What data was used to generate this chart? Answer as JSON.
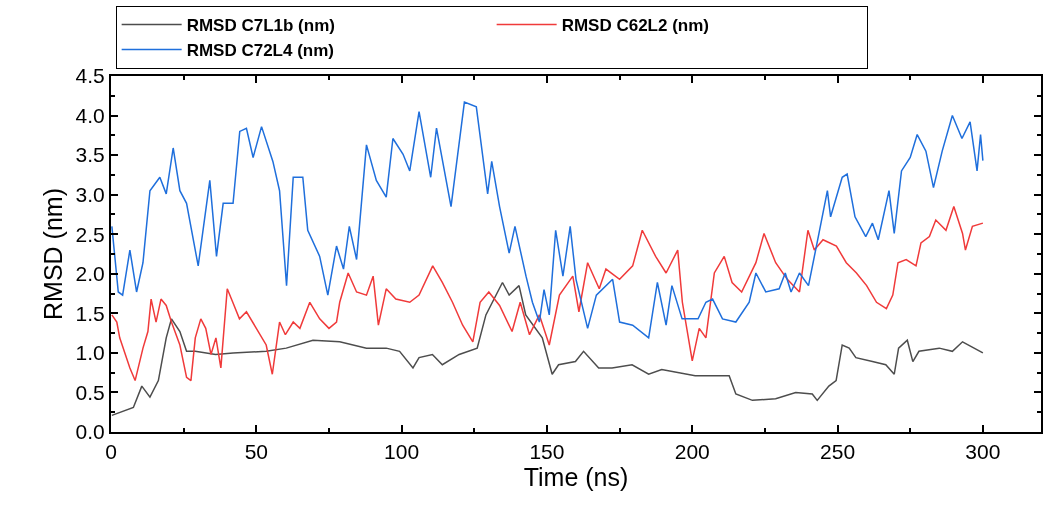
{
  "chart_data": {
    "type": "line",
    "xlabel": "Time (ns)",
    "ylabel": "RMSD (nm)",
    "xlim": [
      0,
      320
    ],
    "ylim": [
      0,
      4.5
    ],
    "xticks": [
      0,
      50,
      100,
      150,
      200,
      250,
      300
    ],
    "yticks": [
      {
        "value": 0,
        "label": "0.0"
      },
      0.5,
      {
        "value": 1,
        "label": "1.0"
      },
      1.5,
      {
        "value": 2,
        "label": "2.0"
      },
      2.5,
      {
        "value": 3,
        "label": "3.0"
      },
      3.5,
      {
        "value": 4,
        "label": "4.0"
      },
      4.5
    ],
    "legend": "top",
    "marker": "none",
    "line_style": "solid",
    "series": [
      {
        "name": "RMSD C7L1b (nm)",
        "color": "#4d4d4d",
        "x": [
          0.3,
          7.7,
          10.6,
          13.4,
          16.3,
          19,
          20.8,
          23.7,
          26,
          29,
          36,
          42,
          53.4,
          60.3,
          69.5,
          78.7,
          87.9,
          94.7,
          99.3,
          103.9,
          106,
          110.6,
          114,
          119.8,
          126,
          129,
          134.7,
          137,
          140.4,
          142.7,
          148.4,
          151.8,
          154,
          159.8,
          162.6,
          167.8,
          172.4,
          179.3,
          185,
          189.5,
          201,
          210,
          212.7,
          215,
          220.7,
          228.7,
          235.6,
          241.3,
          243,
          247,
          249.5,
          251.6,
          254,
          256.3,
          262,
          266.6,
          269.5,
          271,
          274,
          275.9,
          278,
          285,
          289.5,
          293,
          300
        ],
        "values": [
          0.21,
          0.31,
          0.58,
          0.44,
          0.65,
          1.19,
          1.43,
          1.27,
          1.02,
          1.02,
          0.98,
          1.0,
          1.02,
          1.06,
          1.16,
          1.14,
          1.06,
          1.06,
          1.02,
          0.81,
          0.94,
          0.98,
          0.85,
          0.98,
          1.06,
          1.48,
          1.89,
          1.73,
          1.85,
          1.48,
          1.19,
          0.73,
          0.85,
          0.89,
          1.02,
          0.81,
          0.81,
          0.85,
          0.73,
          0.79,
          0.71,
          0.71,
          0.71,
          0.48,
          0.4,
          0.42,
          0.5,
          0.48,
          0.4,
          0.58,
          0.65,
          1.1,
          1.06,
          0.94,
          0.89,
          0.85,
          0.73,
          1.06,
          1.16,
          0.89,
          1.02,
          1.06,
          1.02,
          1.14,
          1.0
        ]
      },
      {
        "name": "RMSD C62L2 (nm)",
        "color": "#f03a3a",
        "x": [
          0.3,
          2,
          3,
          6.5,
          8.3,
          11,
          12.7,
          13.8,
          15.5,
          17.2,
          19,
          20.8,
          23.7,
          26,
          27.5,
          29,
          30.9,
          32.6,
          34.4,
          36.1,
          37.8,
          40,
          41.9,
          44.2,
          46.6,
          50,
          53.4,
          55.5,
          58,
          60,
          62.7,
          65,
          68.4,
          71.8,
          75,
          77.6,
          78.7,
          81.6,
          84.5,
          87.9,
          90.2,
          92,
          94.7,
          98,
          102.8,
          106,
          110.7,
          114,
          117.5,
          121,
          124.5,
          127,
          130,
          133.7,
          138,
          140.8,
          144,
          147.4,
          150.8,
          154.3,
          158.9,
          161,
          164,
          168,
          170.3,
          175,
          179.5,
          182.8,
          187.4,
          191,
          195,
          196.6,
          200,
          202.4,
          204.7,
          207.6,
          211,
          213.7,
          217,
          221.9,
          224.7,
          228.7,
          232.7,
          236.9,
          239.8,
          242,
          245,
          249.6,
          253,
          256.5,
          260,
          263.4,
          266.8,
          269,
          270.8,
          273.6,
          277,
          278.7,
          281.6,
          283.8,
          287.3,
          290,
          293,
          294,
          296.4,
          300
        ],
        "values": [
          1.48,
          1.39,
          1.19,
          0.81,
          0.65,
          1.06,
          1.27,
          1.68,
          1.39,
          1.68,
          1.6,
          1.39,
          1.1,
          0.69,
          0.65,
          1.19,
          1.43,
          1.31,
          0.98,
          1.19,
          0.81,
          1.81,
          1.64,
          1.43,
          1.52,
          1.31,
          1.1,
          0.73,
          1.39,
          1.23,
          1.39,
          1.31,
          1.64,
          1.43,
          1.31,
          1.39,
          1.64,
          2.01,
          1.77,
          1.73,
          1.97,
          1.35,
          1.81,
          1.68,
          1.64,
          1.73,
          2.1,
          1.89,
          1.64,
          1.35,
          1.14,
          1.64,
          1.77,
          1.6,
          1.27,
          1.64,
          1.23,
          1.48,
          1.1,
          1.73,
          1.97,
          1.52,
          2.14,
          1.81,
          2.06,
          1.93,
          2.1,
          2.55,
          2.22,
          2.01,
          2.3,
          1.64,
          0.9,
          1.31,
          1.19,
          2.01,
          2.22,
          1.89,
          1.77,
          2.14,
          2.51,
          2.14,
          1.93,
          1.77,
          2.55,
          2.3,
          2.43,
          2.35,
          2.14,
          2.01,
          1.85,
          1.64,
          1.56,
          1.73,
          2.14,
          2.18,
          2.1,
          2.39,
          2.47,
          2.68,
          2.55,
          2.85,
          2.51,
          2.3,
          2.6,
          2.64
        ]
      },
      {
        "name": "RMSD C72L4 (nm)",
        "color": "#1f6fdc",
        "x": [
          0.3,
          2.5,
          4,
          6.5,
          8.8,
          11,
          13.4,
          16.8,
          19,
          21.4,
          23.7,
          26,
          30,
          34,
          36.3,
          38.6,
          42,
          44.3,
          46.6,
          48.9,
          51.8,
          55.7,
          58,
          60.4,
          62.7,
          66,
          67.7,
          71.8,
          74.6,
          77.6,
          80,
          82,
          84.5,
          87.9,
          91.3,
          94.7,
          97,
          100.5,
          102.8,
          106,
          110,
          112,
          117,
          121.6,
          125.7,
          129.6,
          131,
          133.7,
          137,
          139,
          142.8,
          145,
          147.4,
          149,
          150.8,
          153,
          155.5,
          158,
          160,
          164,
          167,
          172.6,
          175,
          179.5,
          185,
          188,
          191,
          193,
          196.5,
          202,
          204.7,
          207,
          210.4,
          215,
          219.6,
          221.9,
          225.3,
          229.9,
          232,
          234,
          236.9,
          240,
          243.6,
          246.5,
          247.6,
          251.6,
          253.3,
          256,
          259.7,
          262,
          264,
          267.7,
          269.5,
          272,
          275,
          277.4,
          280.4,
          283,
          286,
          289.5,
          292.8,
          295.6,
          298,
          299.2,
          300
        ],
        "values": [
          2.6,
          1.77,
          1.73,
          2.3,
          1.77,
          2.14,
          3.05,
          3.22,
          3.01,
          3.59,
          3.05,
          2.89,
          2.1,
          3.18,
          2.22,
          2.89,
          2.89,
          3.8,
          3.84,
          3.47,
          3.86,
          3.42,
          3.05,
          1.85,
          3.22,
          3.22,
          2.55,
          2.22,
          1.73,
          2.35,
          2.06,
          2.6,
          2.18,
          3.63,
          3.18,
          2.97,
          3.71,
          3.51,
          3.3,
          4.05,
          3.22,
          3.84,
          2.85,
          4.17,
          4.11,
          3.01,
          3.42,
          2.85,
          2.26,
          2.6,
          1.97,
          1.64,
          1.39,
          1.8,
          1.48,
          2.55,
          1.97,
          2.6,
          1.93,
          1.31,
          1.73,
          1.93,
          1.39,
          1.35,
          1.19,
          1.89,
          1.35,
          1.85,
          1.43,
          1.43,
          1.64,
          1.68,
          1.43,
          1.39,
          1.64,
          2.01,
          1.77,
          1.81,
          2.01,
          1.77,
          2.01,
          1.85,
          2.51,
          3.05,
          2.72,
          3.22,
          3.26,
          2.72,
          2.47,
          2.64,
          2.43,
          3.05,
          2.51,
          3.3,
          3.47,
          3.76,
          3.55,
          3.09,
          3.55,
          4.0,
          3.71,
          3.92,
          3.3,
          3.76,
          3.43
        ]
      }
    ]
  }
}
